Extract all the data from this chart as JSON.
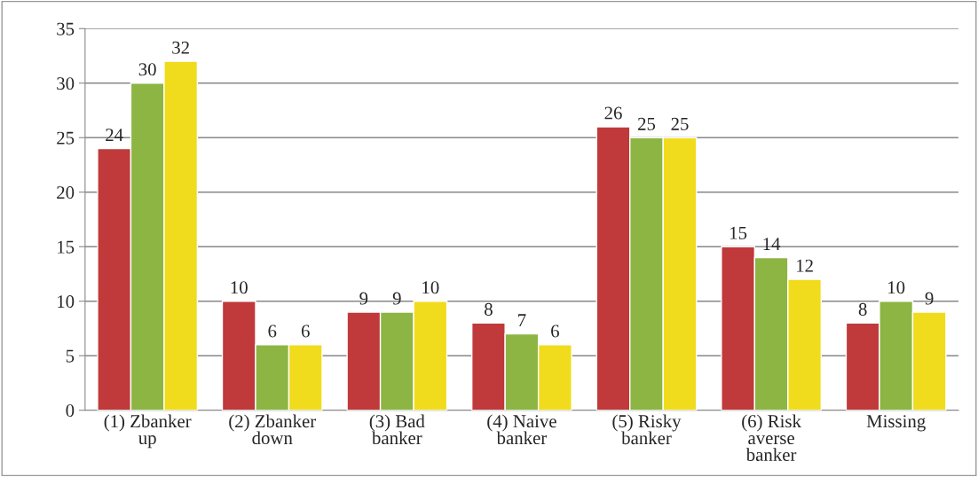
{
  "chart_data": {
    "type": "bar",
    "categories": [
      "(1) Zbanker up",
      "(2) Zbanker down",
      "(3) Bad banker",
      "(4) Naive banker",
      "(5) Risky banker",
      "(6) Risk averse banker",
      "Missing"
    ],
    "series": [
      {
        "color": "#c0393b",
        "values": [
          24,
          10,
          9,
          8,
          26,
          15,
          8
        ]
      },
      {
        "color": "#8cb543",
        "values": [
          30,
          6,
          9,
          7,
          25,
          14,
          10
        ]
      },
      {
        "color": "#f0dc1c",
        "values": [
          32,
          6,
          10,
          6,
          25,
          12,
          9
        ]
      }
    ],
    "ylim": [
      0,
      35
    ],
    "yticks": [
      0,
      5,
      10,
      15,
      20,
      25,
      30,
      35
    ],
    "grid": "y",
    "data_labels": true,
    "legend": false
  }
}
